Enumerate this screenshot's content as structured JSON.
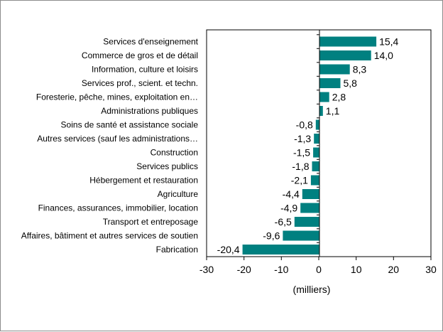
{
  "chart_data": {
    "type": "bar",
    "orientation": "horizontal",
    "title": "",
    "xlabel": "(milliers)",
    "ylabel": "",
    "xlim": [
      -30,
      30
    ],
    "xticks": [
      -30,
      -20,
      -10,
      0,
      10,
      20,
      30
    ],
    "xtick_labels": [
      "-30",
      "-20",
      "-10",
      "0",
      "10",
      "20",
      "30"
    ],
    "grid": false,
    "legend": "none",
    "bar_color": "#008080",
    "categories": [
      "Services d'enseignement",
      "Commerce de gros et de détail",
      "Information, culture et loisirs",
      "Services prof., scient. et techn.",
      "Foresterie, pêche, mines, exploitation en…",
      "Administrations publiques",
      "Soins de santé et assistance sociale",
      "Autres services (sauf les administrations…",
      "Construction",
      "Services publics",
      "Hébergement et restauration",
      "Agriculture",
      "Finances, assurances, immobilier, location",
      "Transport et entreposage",
      "Affaires, bâtiment et autres services de soutien",
      "Fabrication"
    ],
    "values": [
      15.4,
      14.0,
      8.3,
      5.8,
      2.8,
      1.1,
      -0.8,
      -1.3,
      -1.5,
      -1.8,
      -2.1,
      -4.4,
      -4.9,
      -6.5,
      -9.6,
      -20.4
    ],
    "value_labels": [
      "15,4",
      "14,0",
      "8,3",
      "5,8",
      "2,8",
      "1,1",
      "-0,8",
      "-1,3",
      "-1,5",
      "-1,8",
      "-2,1",
      "-4,4",
      "-4,9",
      "-6,5",
      "-9,6",
      "-20,4"
    ]
  }
}
